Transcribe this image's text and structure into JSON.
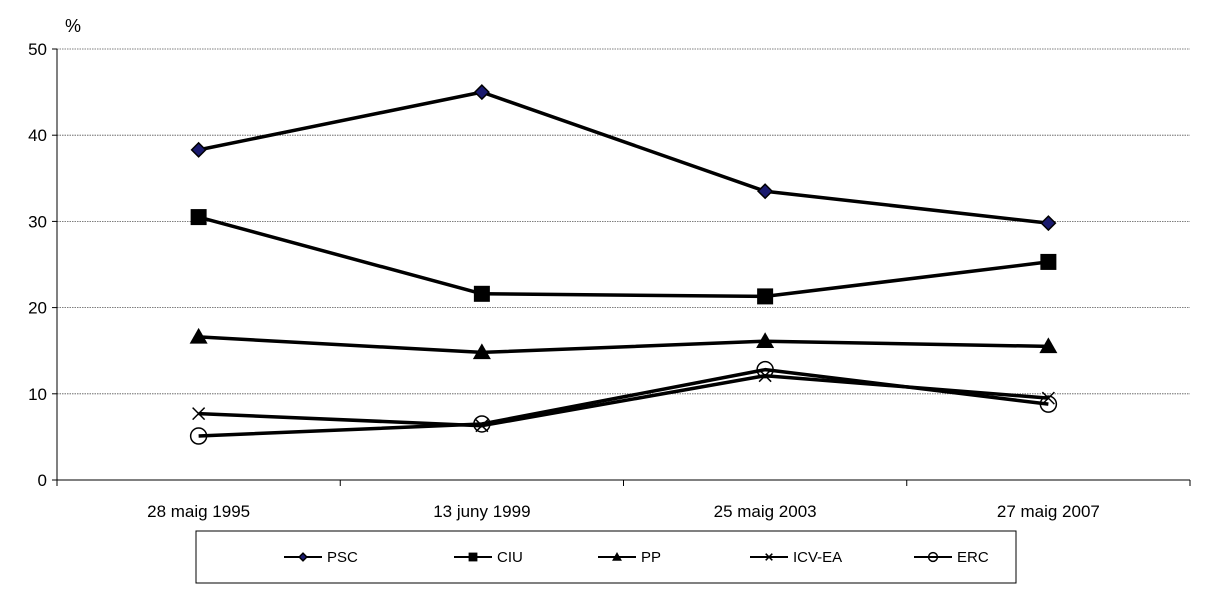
{
  "chart_data": {
    "type": "line",
    "title": "",
    "xlabel": "",
    "ylabel": "%",
    "ylim": [
      0,
      50
    ],
    "yticks": [
      0,
      10,
      20,
      30,
      40,
      50
    ],
    "grid": true,
    "legend_position": "bottom",
    "categories": [
      "28 maig 1995",
      "13 juny 1999",
      "25 maig 2003",
      "27 maig 2007"
    ],
    "series": [
      {
        "name": "PSC",
        "marker": "diamond",
        "values": [
          38.3,
          45.0,
          33.5,
          29.8
        ]
      },
      {
        "name": "CIU",
        "marker": "square",
        "values": [
          30.5,
          21.6,
          21.3,
          25.3
        ]
      },
      {
        "name": "PP",
        "marker": "triangle",
        "values": [
          16.6,
          14.8,
          16.1,
          15.5
        ]
      },
      {
        "name": "ICV-EA",
        "marker": "x",
        "values": [
          7.7,
          6.3,
          12.1,
          9.5
        ]
      },
      {
        "name": "ERC",
        "marker": "circle",
        "values": [
          5.1,
          6.5,
          12.8,
          8.8
        ]
      }
    ]
  }
}
